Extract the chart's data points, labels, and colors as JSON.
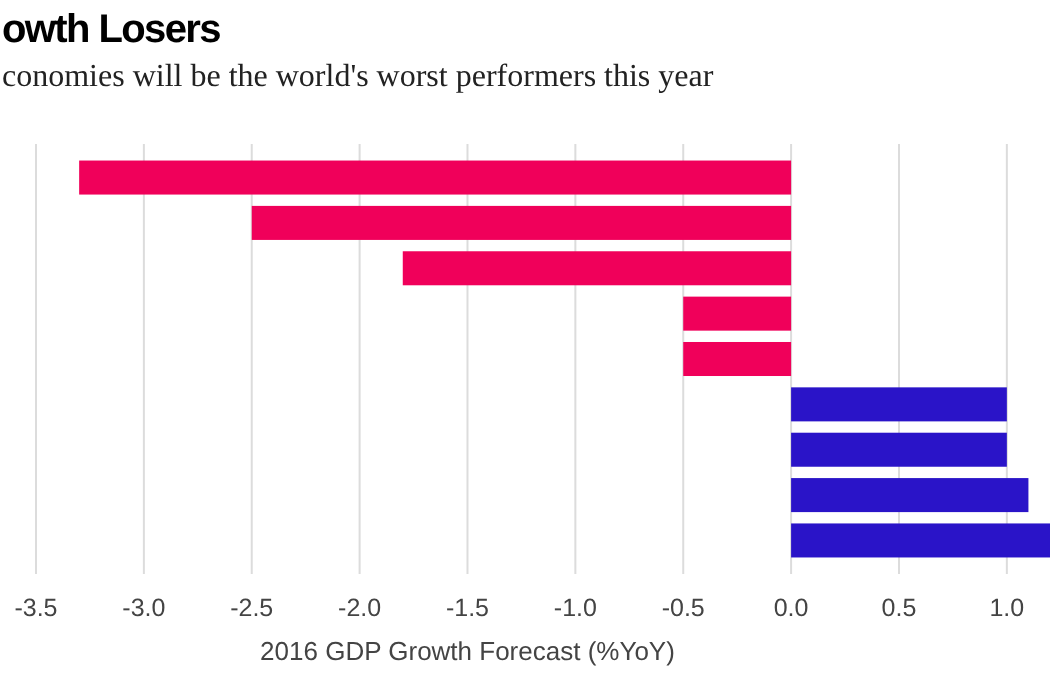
{
  "chart_data": {
    "type": "bar",
    "orientation": "horizontal",
    "title": "owth Losers",
    "subtitle": "conomies will be the world's worst performers this year",
    "xlabel": "2016 GDP Growth Forecast (%YoY)",
    "categories": [
      null,
      null,
      null,
      null,
      null,
      null,
      null,
      null,
      null
    ],
    "values": [
      -3.3,
      -2.5,
      -1.8,
      -0.5,
      -0.5,
      1.0,
      1.0,
      1.1,
      1.2
    ],
    "colors": [
      "#f0005a",
      "#f0005a",
      "#f0005a",
      "#f0005a",
      "#f0005a",
      "#2a14c8",
      "#2a14c8",
      "#2a14c8",
      "#2a14c8"
    ],
    "xlim": [
      -3.5,
      1.2
    ],
    "xticks": [
      {
        "value": -3.5,
        "label": "-3.5"
      },
      {
        "value": -3,
        "label": "-3.0"
      },
      {
        "value": -2.5,
        "label": "-2.5"
      },
      {
        "value": -2,
        "label": "-2.0"
      },
      {
        "value": -1.5,
        "label": "-1.5"
      },
      {
        "value": -1,
        "label": "-1.0"
      },
      {
        "value": -0.5,
        "label": "-0.5"
      },
      {
        "value": 0,
        "label": "0.0"
      },
      {
        "value": 0.5,
        "label": "0.5"
      },
      {
        "value": 1,
        "label": "1.0"
      }
    ],
    "grid": "x",
    "tick_labels": "x"
  }
}
